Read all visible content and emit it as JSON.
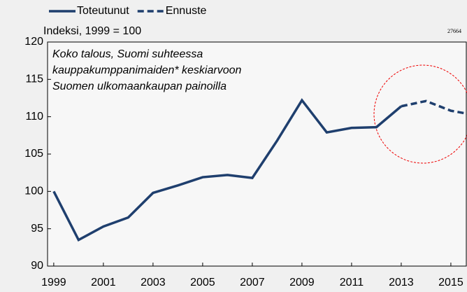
{
  "chart_data": {
    "type": "line",
    "title": "Indeksi, 1999 = 100",
    "annotation": [
      "Koko talous, Suomi suhteessa",
      "kauppakumppanimaiden* keskiarvoon",
      "Suomen ulkomaankaupan painoilla"
    ],
    "code": "27664",
    "x": [
      1999,
      2000,
      2001,
      2002,
      2003,
      2004,
      2005,
      2006,
      2007,
      2008,
      2009,
      2010,
      2011,
      2012,
      2013,
      2014,
      2015,
      2016
    ],
    "series": [
      {
        "name": "Toteutunut",
        "color": "#1f3f6e",
        "dashed": false,
        "values": [
          100,
          93.5,
          95.3,
          96.5,
          99.8,
          100.8,
          101.9,
          102.2,
          101.8,
          106.8,
          112.2,
          107.9,
          108.5,
          108.6,
          111.4,
          null,
          null,
          null
        ]
      },
      {
        "name": "Ennuste",
        "color": "#1f3f6e",
        "dashed": true,
        "values": [
          null,
          null,
          null,
          null,
          null,
          null,
          null,
          null,
          null,
          null,
          null,
          null,
          null,
          null,
          111.4,
          112.1,
          110.8,
          110.2
        ]
      }
    ],
    "xlim": [
      1998.75,
      2015.65
    ],
    "xticks": [
      1999,
      2001,
      2003,
      2005,
      2007,
      2009,
      2011,
      2013,
      2015
    ],
    "ylim": [
      90,
      120
    ],
    "yticks": [
      90,
      95,
      100,
      105,
      110,
      115,
      120
    ],
    "legend": "top"
  }
}
